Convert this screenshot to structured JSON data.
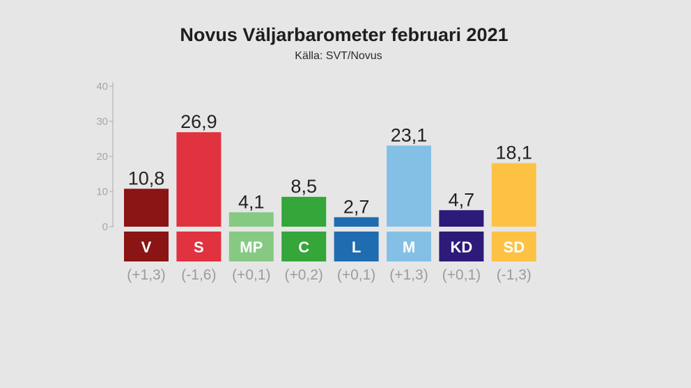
{
  "chart_data": {
    "type": "bar",
    "title": "Novus Väljarbarometer februari 2021",
    "subtitle": "Källa: SVT/Novus",
    "categories": [
      "V",
      "S",
      "MP",
      "C",
      "L",
      "M",
      "KD",
      "SD"
    ],
    "values": [
      10.8,
      26.9,
      4.1,
      8.5,
      2.7,
      23.1,
      4.7,
      18.1
    ],
    "value_labels": [
      "10,8",
      "26,9",
      "4,1",
      "8,5",
      "2,7",
      "23,1",
      "4,7",
      "18,1"
    ],
    "changes": [
      "(+1,3)",
      "(-1,6)",
      "(+0,1)",
      "(+0,2)",
      "(+0,1)",
      "(+1,3)",
      "(+0,1)",
      "(-1,3)"
    ],
    "colors": [
      "#8b1414",
      "#e0323f",
      "#86c983",
      "#34a63a",
      "#1f6cb1",
      "#84c0e6",
      "#2e1a78",
      "#fdc244"
    ],
    "yticks": [
      0,
      10,
      20,
      30,
      40
    ],
    "ylim": [
      0,
      40
    ],
    "xlabel": "",
    "ylabel": "",
    "grid": false,
    "legend": "none"
  }
}
